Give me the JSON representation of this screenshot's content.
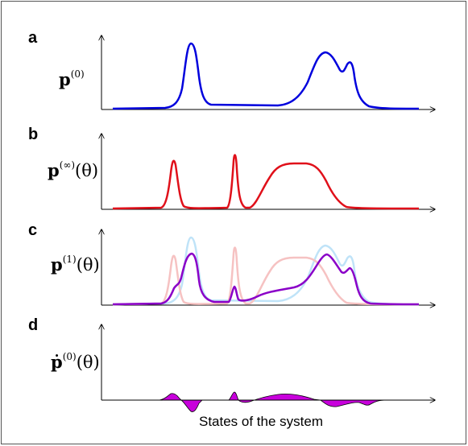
{
  "panels": [
    {
      "letter": "a",
      "ylabel_main": "p",
      "ylabel_sup": "(0)",
      "ylabel_arg": ""
    },
    {
      "letter": "b",
      "ylabel_main": "p",
      "ylabel_sup": "(∞)",
      "ylabel_arg": "(θ)"
    },
    {
      "letter": "c",
      "ylabel_main": "p",
      "ylabel_sup": "(1)",
      "ylabel_arg": "(θ)"
    },
    {
      "letter": "d",
      "ylabel_main": "ṗ",
      "ylabel_sup": "(0)",
      "ylabel_arg": "(θ)"
    }
  ],
  "x_caption": "States of the system",
  "colors": {
    "p0": "#0000dd",
    "pinf": "#e0101a",
    "p1": "#8a00c8",
    "p0_faded": "#bfe3f8",
    "pinf_faded": "#f6c2c2",
    "derivative_fill": "#c800dc",
    "axis": "#000000",
    "frame": "#555555"
  }
}
